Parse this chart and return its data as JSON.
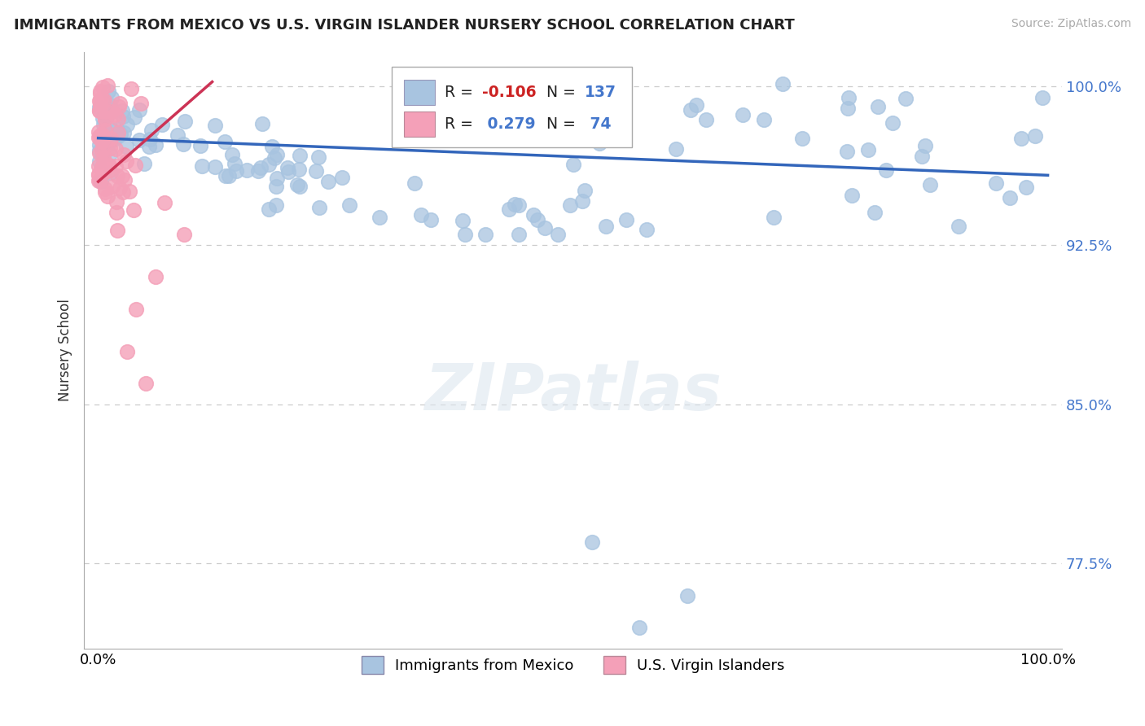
{
  "title": "IMMIGRANTS FROM MEXICO VS U.S. VIRGIN ISLANDER NURSERY SCHOOL CORRELATION CHART",
  "source": "Source: ZipAtlas.com",
  "ylabel": "Nursery School",
  "legend_label1": "Immigrants from Mexico",
  "legend_label2": "U.S. Virgin Islanders",
  "R1": -0.106,
  "N1": 137,
  "R2": 0.279,
  "N2": 74,
  "color1": "#a8c4e0",
  "color2": "#f4a0b8",
  "trendline_color1": "#3366bb",
  "trendline_color2": "#cc3355",
  "ylim_low": 0.735,
  "ylim_high": 1.016,
  "xlim_low": -0.015,
  "xlim_high": 1.015,
  "yticks": [
    0.775,
    0.85,
    0.925,
    1.0
  ],
  "ytick_labels": [
    "77.5%",
    "85.0%",
    "92.5%",
    "100.0%"
  ],
  "watermark": "ZIPatlas",
  "background_color": "#ffffff",
  "legend_box_color1": "#a8c4e0",
  "legend_box_color2": "#f4a0b8",
  "blue_trendline_x": [
    0.0,
    1.0
  ],
  "blue_trendline_y": [
    0.9755,
    0.958
  ],
  "pink_trendline_x": [
    0.0,
    0.12
  ],
  "pink_trendline_y": [
    0.955,
    1.002
  ],
  "tick_color": "#4477cc",
  "grid_color": "#cccccc"
}
